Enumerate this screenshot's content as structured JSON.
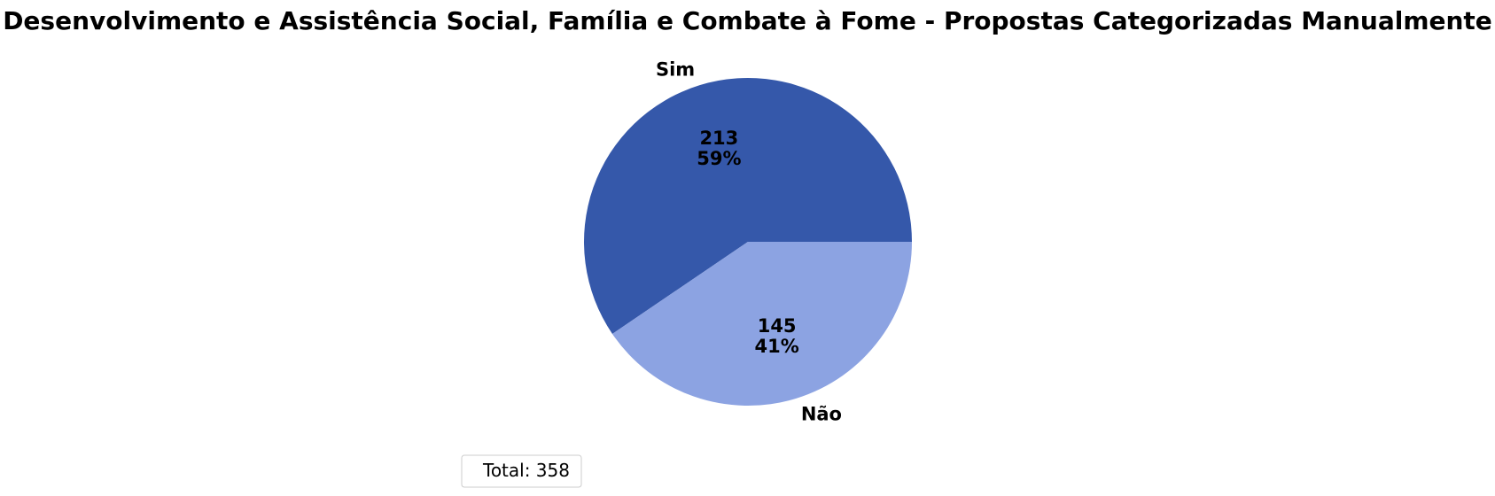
{
  "chart_data": {
    "type": "pie",
    "title": "Desenvolvimento e Assistência Social, Família e Combate à Fome - Propostas Categorizadas Manualmente",
    "slices": [
      {
        "label": "Sim",
        "value": 213,
        "percent": "59%",
        "color": "#3558aa"
      },
      {
        "label": "Não",
        "value": 145,
        "percent": "41%",
        "color": "#8ca3e2"
      }
    ],
    "start_angle_deg": 0,
    "direction": "counterclockwise",
    "legend": {
      "text": "Total: 358",
      "placement": "lower-left"
    }
  }
}
